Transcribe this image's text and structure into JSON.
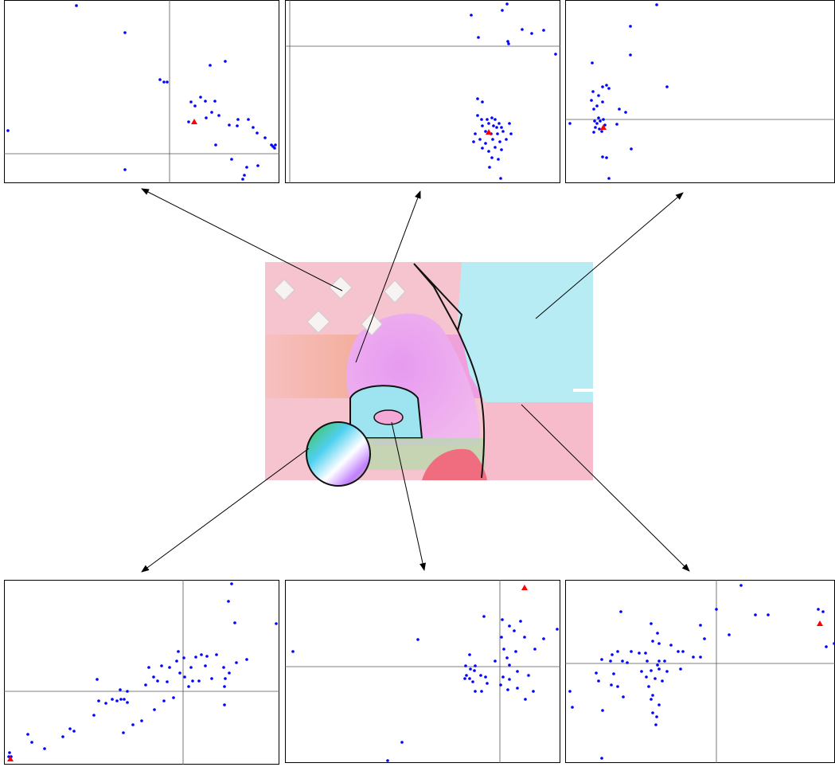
{
  "chart_data": [
    {
      "type": "scatter",
      "color": "#0000ff",
      "xlim": [
        5,
        351
      ],
      "ylim": [
        230,
        0
      ],
      "xticks": [
        213
      ],
      "yticks": [
        193
      ],
      "tick_labels": false,
      "x": [
        96,
        157,
        264,
        283,
        201,
        206,
        210,
        252,
        240,
        258,
        245,
        270,
        266,
        275,
        237,
        259,
        299,
        312,
        288,
        298,
        318,
        323,
        333,
        341,
        343,
        346,
        345,
        271,
        10,
        157,
        291,
        310,
        307,
        324,
        305
      ],
      "y": [
        7,
        41,
        82,
        77,
        100,
        103,
        103,
        122,
        128,
        127,
        133,
        127,
        141,
        145,
        153,
        148,
        150,
        150,
        157,
        158,
        160,
        167,
        173,
        182,
        184,
        182,
        186,
        182,
        164,
        213,
        200,
        210,
        220,
        208,
        225
      ],
      "highlight": {
        "x": 244,
        "y": 153,
        "color": "#ff0000"
      }
    },
    {
      "type": "scatter",
      "color": "#0000ff",
      "xlim": [
        358,
        704
      ],
      "ylim": [
        230,
        0
      ],
      "xticks": [
        364
      ],
      "yticks": [
        58
      ],
      "tick_labels": false,
      "x": [
        592,
        631,
        637,
        601,
        638,
        639,
        656,
        668,
        683,
        698,
        600,
        606,
        612,
        618,
        622,
        614,
        620,
        624,
        627,
        630,
        606,
        610,
        617,
        625,
        632,
        597,
        603,
        610,
        619,
        628,
        636,
        642,
        595,
        606,
        614,
        622,
        630,
        618,
        626,
        615,
        629,
        605,
        640,
        600
      ],
      "y": [
        19,
        13,
        5,
        47,
        52,
        55,
        37,
        42,
        38,
        68,
        124,
        128,
        150,
        148,
        150,
        155,
        158,
        160,
        155,
        160,
        158,
        165,
        168,
        168,
        165,
        168,
        175,
        180,
        175,
        178,
        175,
        168,
        178,
        186,
        190,
        185,
        188,
        198,
        200,
        210,
        224,
        150,
        155,
        145
      ],
      "highlight": {
        "x": 614,
        "y": 166,
        "color": "#ff0000"
      }
    },
    {
      "type": "scatter",
      "color": "#0000ff",
      "xlim": [
        710,
        1049
      ],
      "ylim": [
        230,
        0
      ],
      "xticks": [],
      "yticks": [
        150
      ],
      "tick_labels": false,
      "x": [
        825,
        792,
        792,
        744,
        838,
        757,
        762,
        765,
        745,
        752,
        743,
        757,
        750,
        746,
        778,
        786,
        752,
        747,
        754,
        758,
        750,
        748,
        753,
        756,
        746,
        760,
        716,
        775,
        793,
        757,
        762,
        765
      ],
      "y": [
        6,
        33,
        69,
        79,
        109,
        109,
        107,
        111,
        115,
        120,
        126,
        128,
        133,
        137,
        137,
        141,
        148,
        152,
        152,
        150,
        155,
        160,
        162,
        165,
        166,
        157,
        155,
        156,
        187,
        197,
        198,
        224
      ],
      "highlight": {
        "x": 758,
        "y": 160,
        "color": "#ff0000"
      }
    },
    {
      "type": "scatter",
      "color": "#0000ff",
      "xlim": [
        5,
        351
      ],
      "ylim": [
        232,
        0
      ],
      "xticks": [
        230
      ],
      "yticks": [
        140
      ],
      "tick_labels": false,
      "x": [
        291,
        287,
        295,
        347,
        224,
        231,
        246,
        253,
        260,
        272,
        297,
        310,
        187,
        203,
        213,
        222,
        226,
        240,
        258,
        281,
        288,
        193,
        198,
        210,
        232,
        242,
        250,
        266,
        283,
        282,
        183,
        122,
        237,
        151,
        160,
        141,
        147,
        152,
        156,
        160,
        133,
        124,
        206,
        218,
        282,
        118,
        194,
        178,
        167,
        155,
        88,
        93,
        79,
        56,
        35,
        40,
        12,
        14,
        11
      ],
      "y": [
        5,
        27,
        54,
        55,
        90,
        98,
        97,
        94,
        96,
        94,
        104,
        100,
        110,
        108,
        110,
        102,
        117,
        110,
        108,
        110,
        117,
        122,
        127,
        128,
        122,
        127,
        127,
        124,
        124,
        134,
        132,
        125,
        134,
        138,
        140,
        150,
        152,
        150,
        150,
        154,
        155,
        152,
        152,
        148,
        157,
        170,
        163,
        177,
        182,
        192,
        187,
        190,
        197,
        212,
        194,
        204,
        217,
        222,
        222
      ],
      "highlight": {
        "x": 13,
        "y": 225,
        "color": "#ff0000"
      }
    },
    {
      "type": "scatter",
      "color": "#0000ff",
      "xlim": [
        358,
        704
      ],
      "ylim": [
        230,
        0
      ],
      "xticks": [
        628
      ],
      "yticks": [
        109
      ],
      "tick_labels": false,
      "x": [
        608,
        631,
        654,
        640,
        646,
        630,
        659,
        683,
        700,
        525,
        368,
        590,
        633,
        648,
        672,
        637,
        622,
        640,
        585,
        591,
        597,
        596,
        586,
        590,
        584,
        594,
        604,
        610,
        632,
        640,
        650,
        664,
        597,
        605,
        629,
        638,
        650,
        670,
        612,
        660,
        505,
        487
      ],
      "y": [
        46,
        50,
        52,
        58,
        64,
        72,
        72,
        74,
        62,
        75,
        90,
        94,
        87,
        90,
        87,
        98,
        102,
        107,
        108,
        112,
        108,
        114,
        120,
        124,
        124,
        128,
        120,
        122,
        122,
        125,
        115,
        120,
        140,
        140,
        132,
        138,
        136,
        140,
        130,
        150,
        204,
        227
      ],
      "highlight": {
        "x": 659,
        "y": 10,
        "color": "#ff0000"
      }
    },
    {
      "type": "scatter",
      "color": "#0000ff",
      "xlim": [
        710,
        1049
      ],
      "ylim": [
        230,
        0
      ],
      "xticks": [
        900
      ],
      "yticks": [
        105
      ],
      "tick_labels": false,
      "x": [
        931,
        1028,
        1034,
        900,
        949,
        965,
        780,
        818,
        826,
        880,
        916,
        885,
        820,
        828,
        843,
        852,
        858,
        776,
        769,
        793,
        803,
        811,
        756,
        767,
        782,
        788,
        813,
        828,
        835,
        826,
        855,
        871,
        880,
        806,
        818,
        828,
        838,
        749,
        771,
        812,
        823,
        832,
        752,
        768,
        776,
        815,
        820,
        716,
        783,
        818,
        828,
        820,
        825,
        824,
        757,
        719,
        1038,
        1048,
        756
      ],
      "y": [
        7,
        37,
        40,
        37,
        44,
        44,
        40,
        55,
        67,
        57,
        69,
        74,
        77,
        80,
        82,
        90,
        90,
        90,
        94,
        90,
        92,
        92,
        100,
        102,
        102,
        104,
        102,
        102,
        102,
        107,
        112,
        97,
        97,
        115,
        114,
        112,
        115,
        117,
        118,
        122,
        124,
        127,
        127,
        132,
        134,
        134,
        145,
        140,
        147,
        150,
        157,
        167,
        172,
        182,
        164,
        160,
        84,
        80,
        224
      ],
      "highlight": {
        "x": 1030,
        "y": 55,
        "color": "#ff0000"
      }
    }
  ]
}
